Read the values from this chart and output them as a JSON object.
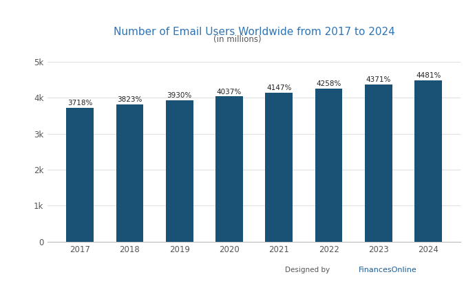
{
  "title": "Number of Email Users Worldwide from 2017 to 2024",
  "subtitle": "(in millions)",
  "years": [
    2017,
    2018,
    2019,
    2020,
    2021,
    2022,
    2023,
    2024
  ],
  "values": [
    3718,
    3823,
    3930,
    4037,
    4147,
    4258,
    4371,
    4481
  ],
  "labels": [
    "3718%",
    "3823%",
    "3930%",
    "4037%",
    "4147%",
    "4258%",
    "4371%",
    "4481%"
  ],
  "bar_color": "#1a5276",
  "background_color": "#ffffff",
  "ylim": [
    0,
    5000
  ],
  "yticks": [
    0,
    1000,
    2000,
    3000,
    4000,
    5000
  ],
  "ytick_labels": [
    "0",
    "1k",
    "2k",
    "3k",
    "4k",
    "5k"
  ],
  "title_color": "#2e74b5",
  "subtitle_color": "#555555",
  "label_color": "#222222",
  "grid_color": "#e0e0e0",
  "watermark_text": "Designed by",
  "watermark_brand": "FinancesOnline",
  "watermark_brand_regular": "Finances",
  "watermark_brand_bold": "Online"
}
